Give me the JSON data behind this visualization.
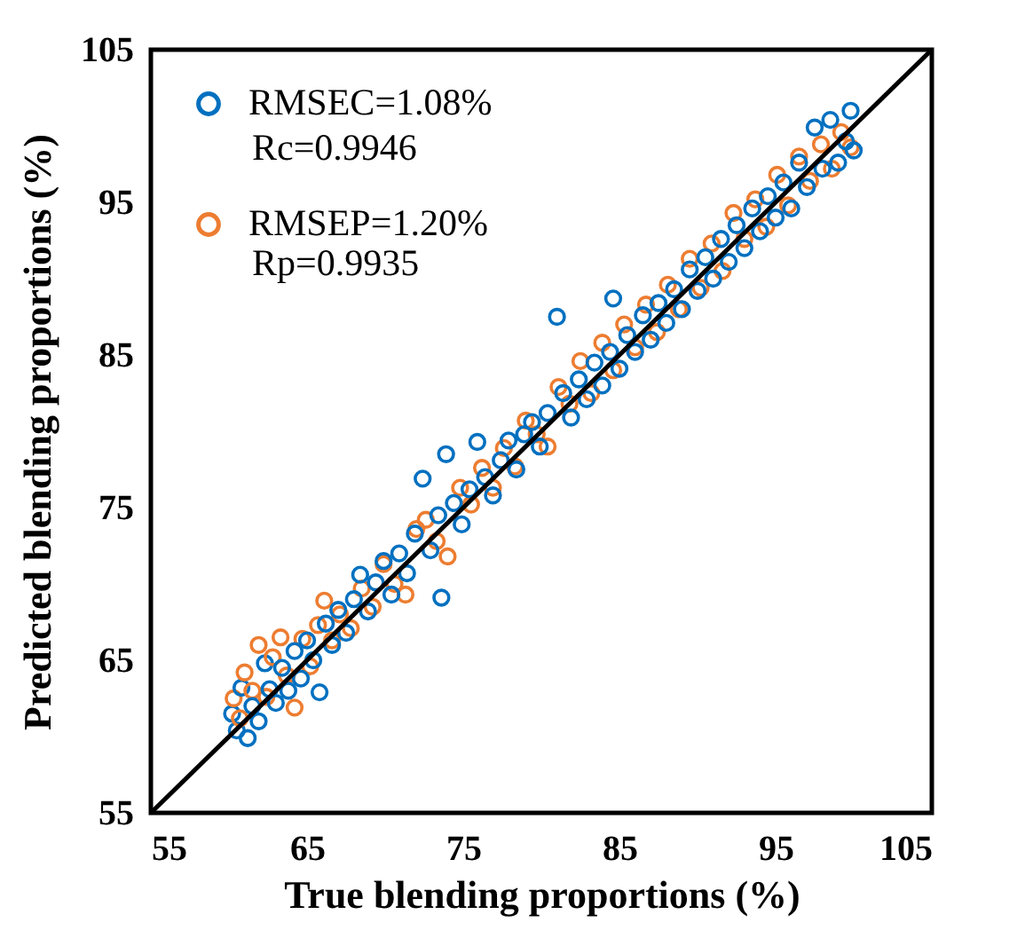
{
  "chart_data": {
    "type": "scatter",
    "xlabel": "True blending proportions (%)",
    "ylabel": "Predicted blending proportions (%)",
    "xlim": [
      55,
      105
    ],
    "ylim": [
      55,
      105
    ],
    "xticks": [
      55,
      65,
      75,
      85,
      95,
      105
    ],
    "yticks": [
      55,
      65,
      75,
      85,
      95,
      105
    ],
    "grid": false,
    "legend": "top left",
    "annotations": [
      "Rc=0.9946",
      "Rp=0.9935"
    ],
    "series": [
      {
        "name": "RMSEC=1.08%",
        "color": "#0070c0",
        "marker": "circle",
        "x": [
          60.2,
          60.5,
          60.8,
          61.2,
          61.5,
          61.9,
          62.3,
          62.6,
          63.0,
          63.4,
          63.8,
          64.2,
          64.6,
          65.0,
          65.4,
          65.8,
          66.2,
          66.6,
          67.0,
          67.5,
          68.0,
          68.4,
          68.9,
          69.4,
          69.9,
          70.4,
          70.9,
          71.4,
          71.9,
          72.4,
          72.9,
          73.4,
          73.6,
          73.9,
          74.4,
          74.9,
          75.4,
          75.9,
          76.4,
          76.9,
          77.4,
          77.9,
          78.4,
          78.9,
          79.4,
          79.9,
          80.4,
          81.0,
          81.4,
          81.9,
          82.4,
          82.9,
          83.4,
          83.9,
          84.4,
          84.6,
          85.0,
          85.5,
          86.0,
          86.5,
          87.0,
          87.5,
          88.0,
          88.5,
          89.0,
          89.5,
          90.0,
          90.5,
          91.0,
          91.5,
          92.0,
          92.5,
          93.0,
          93.5,
          94.0,
          94.5,
          95.0,
          95.5,
          96.0,
          96.5,
          97.0,
          97.5,
          98.0,
          98.5,
          99.0,
          99.5,
          99.8,
          100.0
        ],
        "values": [
          61.5,
          60.4,
          63.2,
          59.9,
          62.0,
          61.0,
          64.8,
          63.1,
          62.2,
          64.5,
          63.0,
          65.6,
          63.8,
          66.3,
          65.0,
          62.9,
          67.4,
          66.0,
          68.3,
          66.8,
          69.0,
          70.6,
          68.2,
          70.1,
          71.5,
          69.3,
          72.0,
          70.7,
          73.3,
          76.9,
          72.2,
          74.5,
          69.1,
          78.5,
          75.3,
          73.9,
          76.2,
          79.3,
          77.0,
          75.8,
          78.1,
          79.4,
          77.5,
          79.8,
          80.6,
          79.0,
          81.2,
          87.5,
          82.5,
          80.9,
          83.4,
          82.1,
          84.5,
          83.0,
          85.2,
          88.7,
          84.1,
          86.3,
          85.2,
          87.6,
          86.0,
          88.4,
          87.1,
          89.3,
          88.0,
          90.6,
          89.2,
          91.4,
          90.0,
          92.6,
          91.1,
          93.5,
          92.0,
          94.6,
          93.1,
          95.4,
          94.0,
          96.3,
          94.6,
          97.6,
          96.0,
          99.9,
          97.2,
          100.4,
          97.6,
          99.0,
          101.0,
          98.4
        ]
      },
      {
        "name": "RMSEP=1.20%",
        "color": "#ed7d31",
        "marker": "circle",
        "x": [
          60.3,
          60.7,
          61.0,
          61.5,
          61.9,
          62.4,
          62.8,
          63.3,
          63.7,
          64.2,
          64.7,
          65.2,
          65.7,
          66.1,
          66.6,
          67.1,
          67.8,
          68.5,
          69.2,
          69.9,
          70.6,
          71.3,
          72.0,
          72.6,
          73.3,
          74.0,
          74.8,
          75.5,
          76.2,
          76.9,
          77.6,
          78.3,
          79.0,
          79.7,
          80.4,
          81.1,
          81.8,
          82.5,
          83.2,
          83.9,
          84.6,
          85.3,
          86.0,
          86.7,
          87.4,
          88.1,
          88.8,
          89.5,
          90.2,
          90.9,
          91.6,
          92.3,
          93.0,
          93.7,
          94.4,
          95.1,
          95.8,
          96.5,
          97.2,
          97.9,
          98.6,
          99.2,
          99.8
        ],
        "values": [
          62.5,
          61.2,
          64.2,
          63.0,
          66.0,
          62.6,
          65.2,
          66.5,
          64.0,
          61.9,
          66.4,
          64.6,
          67.3,
          68.9,
          66.3,
          68.0,
          67.1,
          69.7,
          68.5,
          71.3,
          70.0,
          69.3,
          73.6,
          74.2,
          72.8,
          71.8,
          76.3,
          75.2,
          77.6,
          76.3,
          78.9,
          77.7,
          80.7,
          79.8,
          79.0,
          82.9,
          81.8,
          84.6,
          82.5,
          85.8,
          84.0,
          87.0,
          85.5,
          88.3,
          86.5,
          89.6,
          88.0,
          91.3,
          89.4,
          92.3,
          90.5,
          94.3,
          92.6,
          95.2,
          93.4,
          96.8,
          94.8,
          98.0,
          96.4,
          98.8,
          97.2,
          99.6,
          98.6
        ]
      },
      {
        "type": "line",
        "color": "#000000",
        "x": [
          55,
          105
        ],
        "values": [
          55,
          105
        ]
      }
    ]
  }
}
